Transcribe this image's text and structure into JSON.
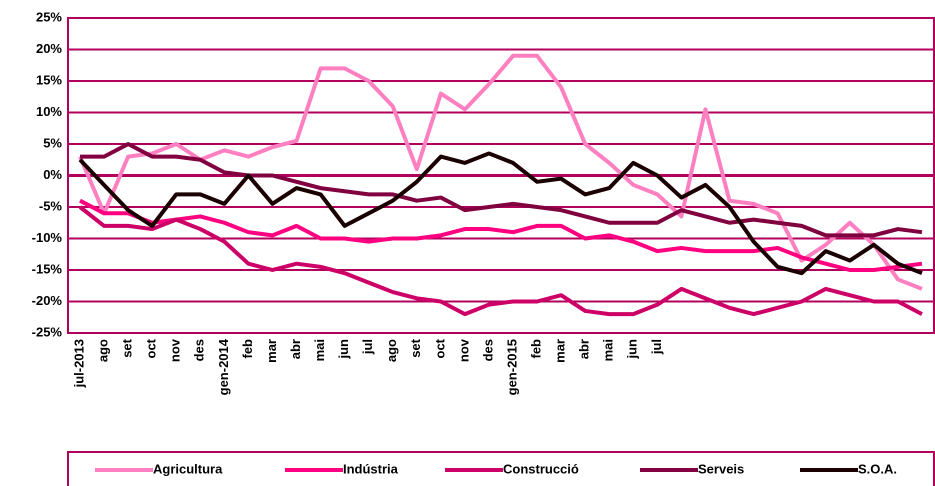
{
  "chart_data": {
    "type": "line",
    "categories": [
      "jul-2013",
      "ago",
      "set",
      "oct",
      "nov",
      "des",
      "gen-2014",
      "feb",
      "mar",
      "abr",
      "mai",
      "jun",
      "jul",
      "ago",
      "set",
      "oct",
      "nov",
      "des",
      "gen-2015",
      "feb",
      "mar",
      "abr",
      "mai",
      "jun",
      "jul",
      null,
      null,
      null,
      null,
      null,
      null,
      null,
      null,
      null,
      null,
      null
    ],
    "series": [
      {
        "name": "Agricultura",
        "color": "#ff80c0",
        "values": [
          3,
          -6,
          3,
          3.5,
          5,
          2.5,
          4,
          3,
          4.5,
          5.5,
          17,
          17,
          15,
          11,
          1,
          13,
          10.5,
          14.5,
          19,
          19,
          14,
          5,
          2,
          -1.5,
          -3,
          -6.5,
          10.5,
          -4,
          -4.5,
          -6,
          -13.5,
          -11,
          -7.5,
          -11,
          -16.5,
          -18
        ]
      },
      {
        "name": "Indústria",
        "color": "#ff0080",
        "values": [
          -4,
          -6,
          -6,
          -7.5,
          -7,
          -6.5,
          -7.5,
          -9,
          -9.5,
          -8,
          -10,
          -10,
          -10.5,
          -10,
          -10,
          -9.5,
          -8.5,
          -8.5,
          -9,
          -8,
          -8,
          -10,
          -9.5,
          -10.5,
          -12,
          -11.5,
          -12,
          -12,
          -12,
          -11.5,
          -13,
          -14,
          -15,
          -15,
          -14.5,
          -14
        ]
      },
      {
        "name": "Construcció",
        "color": "#cc0066",
        "values": [
          -5,
          -8,
          -8,
          -8.5,
          -7,
          -8.5,
          -10.5,
          -14,
          -15,
          -14,
          -14.5,
          -15.5,
          -17,
          -18.5,
          -19.5,
          -20,
          -22,
          -20.5,
          -20,
          -20,
          -19,
          -21.5,
          -22,
          -22,
          -20.5,
          -18,
          -19.5,
          -21,
          -22,
          -21,
          -20,
          -18,
          -19,
          -20,
          -20,
          -22
        ]
      },
      {
        "name": "Serveis",
        "color": "#800040",
        "values": [
          3,
          3,
          5,
          3,
          3,
          2.5,
          0.5,
          0,
          0,
          -1,
          -2,
          -2.5,
          -3,
          -3,
          -4,
          -3.5,
          -5.5,
          -5,
          -4.5,
          -5,
          -5.5,
          -6.5,
          -7.5,
          -7.5,
          -7.5,
          -5.5,
          -6.5,
          -7.5,
          -7,
          -7.5,
          -8,
          -9.5,
          -9.5,
          -9.5,
          -8.5,
          -9
        ]
      },
      {
        "name": "S.O.A.",
        "color": "#1a0000",
        "values": [
          2.5,
          -1.5,
          -5.5,
          -8,
          -3,
          -3,
          -4.5,
          0,
          -4.5,
          -2,
          -3,
          -8,
          -6,
          -4,
          -1,
          3,
          2,
          3.5,
          2,
          -1,
          -0.5,
          -3,
          -2,
          2,
          0,
          -3.5,
          -1.5,
          -5,
          -10.5,
          -14.5,
          -15.5,
          -12,
          -13.5,
          -11,
          -14,
          -15.5
        ]
      }
    ],
    "ylim": [
      -25,
      25
    ],
    "yticks": [
      {
        "value": -25,
        "label": "-25%"
      },
      {
        "value": -20,
        "label": "-20%"
      },
      {
        "value": -15,
        "label": "-15%"
      },
      {
        "value": -10,
        "label": "-10%"
      },
      {
        "value": -5,
        "label": "-5%"
      },
      {
        "value": 0,
        "label": "0%"
      },
      {
        "value": 5,
        "label": "5%"
      },
      {
        "value": 10,
        "label": "10%"
      },
      {
        "value": 15,
        "label": "15%"
      },
      {
        "value": 20,
        "label": "20%"
      },
      {
        "value": 25,
        "label": "25%"
      }
    ],
    "grid": true,
    "legend": "bottom"
  }
}
